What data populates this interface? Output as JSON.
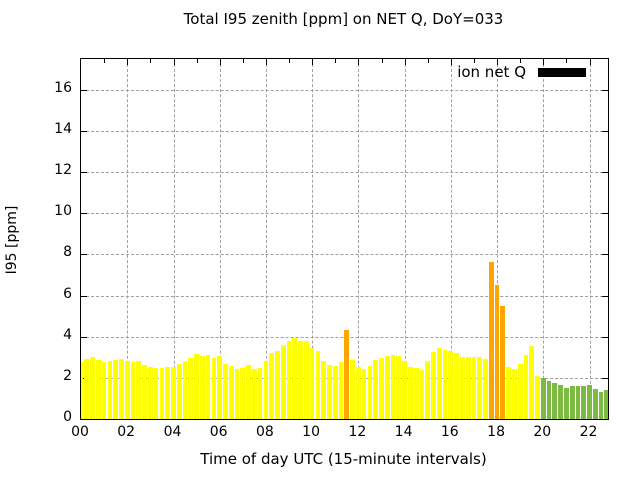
{
  "chart_data": {
    "type": "bar",
    "title": "Total I95 zenith [ppm] on NET Q, DoY=033",
    "xlabel": "Time of day UTC (15-minute intervals)",
    "ylabel": "I95 [ppm]",
    "legend": [
      {
        "label": "ion net Q",
        "swatch_color": "#000000"
      }
    ],
    "legend_position": "top-right-inside",
    "grid": "dashed-major",
    "xlim": [
      0,
      22.8
    ],
    "ylim": [
      0,
      17.5
    ],
    "interval_hours": 0.25,
    "xticks": [
      {
        "v": 0,
        "label": "00"
      },
      {
        "v": 2,
        "label": "02"
      },
      {
        "v": 4,
        "label": "04"
      },
      {
        "v": 6,
        "label": "06"
      },
      {
        "v": 8,
        "label": "08"
      },
      {
        "v": 10,
        "label": "10"
      },
      {
        "v": 12,
        "label": "12"
      },
      {
        "v": 14,
        "label": "14"
      },
      {
        "v": 16,
        "label": "16"
      },
      {
        "v": 18,
        "label": "18"
      },
      {
        "v": 20,
        "label": "20"
      },
      {
        "v": 22,
        "label": "22"
      }
    ],
    "minor_xtick_step_hours": 1,
    "yticks": [
      {
        "v": 0,
        "label": "0"
      },
      {
        "v": 2,
        "label": "2"
      },
      {
        "v": 4,
        "label": "4"
      },
      {
        "v": 6,
        "label": "6"
      },
      {
        "v": 8,
        "label": "8"
      },
      {
        "v": 10,
        "label": "10"
      },
      {
        "v": 12,
        "label": "12"
      },
      {
        "v": 14,
        "label": "14"
      },
      {
        "v": 16,
        "label": "16"
      }
    ],
    "color_map": {
      "y": "#ffff00",
      "o": "#ffa500",
      "g": "#7cba44"
    },
    "bars": [
      [
        "00:00",
        2.75,
        "y"
      ],
      [
        "00:15",
        2.9,
        "y"
      ],
      [
        "00:30",
        3.0,
        "y"
      ],
      [
        "00:45",
        2.85,
        "y"
      ],
      [
        "01:00",
        2.75,
        "y"
      ],
      [
        "01:15",
        2.8,
        "y"
      ],
      [
        "01:30",
        2.85,
        "y"
      ],
      [
        "01:45",
        2.9,
        "y"
      ],
      [
        "02:00",
        2.8,
        "y"
      ],
      [
        "02:15",
        2.75,
        "y"
      ],
      [
        "02:30",
        2.8,
        "y"
      ],
      [
        "02:45",
        2.65,
        "y"
      ],
      [
        "03:00",
        2.55,
        "y"
      ],
      [
        "03:15",
        2.5,
        "y"
      ],
      [
        "03:30",
        2.5,
        "y"
      ],
      [
        "03:45",
        2.55,
        "y"
      ],
      [
        "04:00",
        2.55,
        "y"
      ],
      [
        "04:15",
        2.7,
        "y"
      ],
      [
        "04:30",
        2.8,
        "y"
      ],
      [
        "04:45",
        2.95,
        "y"
      ],
      [
        "05:00",
        3.15,
        "y"
      ],
      [
        "05:15",
        3.05,
        "y"
      ],
      [
        "05:30",
        3.1,
        "y"
      ],
      [
        "05:45",
        2.95,
        "y"
      ],
      [
        "06:00",
        3.05,
        "y"
      ],
      [
        "06:15",
        2.7,
        "y"
      ],
      [
        "06:30",
        2.6,
        "y"
      ],
      [
        "06:45",
        2.45,
        "y"
      ],
      [
        "07:00",
        2.5,
        "y"
      ],
      [
        "07:15",
        2.65,
        "y"
      ],
      [
        "07:30",
        2.45,
        "y"
      ],
      [
        "07:45",
        2.5,
        "y"
      ],
      [
        "08:00",
        2.8,
        "y"
      ],
      [
        "08:15",
        3.2,
        "y"
      ],
      [
        "08:30",
        3.3,
        "y"
      ],
      [
        "08:45",
        3.6,
        "y"
      ],
      [
        "09:00",
        3.8,
        "y"
      ],
      [
        "09:15",
        3.95,
        "y"
      ],
      [
        "09:30",
        3.8,
        "y"
      ],
      [
        "09:45",
        3.8,
        "y"
      ],
      [
        "10:00",
        3.45,
        "y"
      ],
      [
        "10:15",
        3.3,
        "y"
      ],
      [
        "10:30",
        2.8,
        "y"
      ],
      [
        "10:45",
        2.65,
        "y"
      ],
      [
        "11:00",
        2.6,
        "y"
      ],
      [
        "11:15",
        2.75,
        "y"
      ],
      [
        "11:30",
        4.35,
        "o"
      ],
      [
        "11:45",
        2.85,
        "y"
      ],
      [
        "12:00",
        2.55,
        "y"
      ],
      [
        "12:15",
        2.45,
        "y"
      ],
      [
        "12:30",
        2.6,
        "y"
      ],
      [
        "12:45",
        2.85,
        "y"
      ],
      [
        "13:00",
        2.95,
        "y"
      ],
      [
        "13:15",
        3.05,
        "y"
      ],
      [
        "13:30",
        3.1,
        "y"
      ],
      [
        "13:45",
        3.05,
        "y"
      ],
      [
        "14:00",
        2.8,
        "y"
      ],
      [
        "14:15",
        2.55,
        "y"
      ],
      [
        "14:30",
        2.5,
        "y"
      ],
      [
        "14:45",
        2.4,
        "y"
      ],
      [
        "15:00",
        2.8,
        "y"
      ],
      [
        "15:15",
        3.25,
        "y"
      ],
      [
        "15:30",
        3.45,
        "y"
      ],
      [
        "15:45",
        3.35,
        "y"
      ],
      [
        "16:00",
        3.3,
        "y"
      ],
      [
        "16:15",
        3.2,
        "y"
      ],
      [
        "16:30",
        3.0,
        "y"
      ],
      [
        "16:45",
        3.0,
        "y"
      ],
      [
        "17:00",
        3.0,
        "y"
      ],
      [
        "17:15",
        3.0,
        "y"
      ],
      [
        "17:30",
        2.9,
        "y"
      ],
      [
        "17:45",
        7.65,
        "o"
      ],
      [
        "18:00",
        6.5,
        "o"
      ],
      [
        "18:15",
        5.5,
        "o"
      ],
      [
        "18:30",
        2.55,
        "y"
      ],
      [
        "18:45",
        2.45,
        "y"
      ],
      [
        "19:00",
        2.7,
        "y"
      ],
      [
        "19:15",
        3.1,
        "y"
      ],
      [
        "19:30",
        3.55,
        "y"
      ],
      [
        "19:45",
        2.1,
        "y"
      ],
      [
        "20:00",
        2.0,
        "g"
      ],
      [
        "20:15",
        1.85,
        "g"
      ],
      [
        "20:30",
        1.75,
        "g"
      ],
      [
        "20:45",
        1.65,
        "g"
      ],
      [
        "21:00",
        1.5,
        "g"
      ],
      [
        "21:15",
        1.6,
        "g"
      ],
      [
        "21:30",
        1.6,
        "g"
      ],
      [
        "21:45",
        1.6,
        "g"
      ],
      [
        "22:00",
        1.65,
        "g"
      ],
      [
        "22:15",
        1.45,
        "g"
      ],
      [
        "22:30",
        1.3,
        "g"
      ],
      [
        "22:45",
        1.4,
        "g"
      ]
    ]
  }
}
